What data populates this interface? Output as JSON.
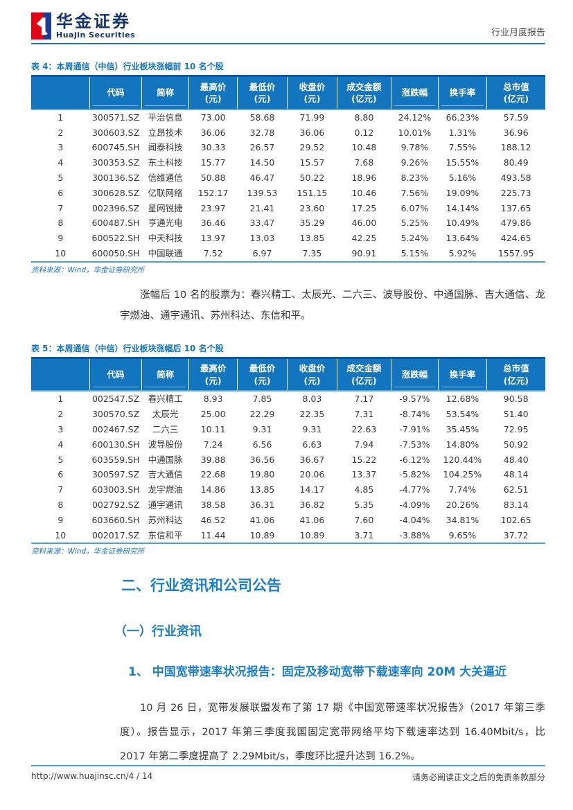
{
  "header": {
    "logo_cn": "华金证券",
    "logo_en": "Huajin Securities",
    "report_type": "行业月度报告"
  },
  "tables": [
    {
      "title": "表 4：本周通信（中信）行业板块涨幅前 10 名个股",
      "headers": [
        "",
        "代码",
        "简称",
        "最高价\n(元)",
        "最低价\n(元)",
        "收盘价\n(元)",
        "成交金额\n(亿元)",
        "涨跌幅",
        "换手率",
        "总市值\n(亿元)"
      ],
      "rows": [
        [
          "1",
          "300571.SZ",
          "平治信息",
          "73.00",
          "58.68",
          "71.99",
          "8.80",
          "24.12%",
          "66.23%",
          "57.59"
        ],
        [
          "2",
          "300603.SZ",
          "立昂技术",
          "36.06",
          "32.78",
          "36.06",
          "0.12",
          "10.01%",
          "1.31%",
          "36.96"
        ],
        [
          "3",
          "600745.SH",
          "闻泰科技",
          "30.33",
          "26.57",
          "29.52",
          "10.48",
          "9.78%",
          "7.55%",
          "188.12"
        ],
        [
          "4",
          "300353.SZ",
          "东土科技",
          "15.77",
          "14.50",
          "15.57",
          "7.68",
          "9.26%",
          "15.55%",
          "80.49"
        ],
        [
          "5",
          "300136.SZ",
          "信维通信",
          "50.88",
          "46.47",
          "50.22",
          "18.96",
          "8.23%",
          "5.16%",
          "493.58"
        ],
        [
          "6",
          "300628.SZ",
          "亿联网络",
          "152.17",
          "139.53",
          "151.15",
          "10.46",
          "7.56%",
          "19.09%",
          "225.73"
        ],
        [
          "7",
          "002396.SZ",
          "星网锐捷",
          "23.97",
          "21.41",
          "23.60",
          "17.25",
          "6.07%",
          "14.14%",
          "137.65"
        ],
        [
          "8",
          "600487.SH",
          "亨通光电",
          "36.46",
          "33.47",
          "35.29",
          "46.00",
          "5.25%",
          "10.49%",
          "479.86"
        ],
        [
          "9",
          "600522.SH",
          "中天科技",
          "13.97",
          "13.03",
          "13.85",
          "42.25",
          "5.24%",
          "13.64%",
          "424.65"
        ],
        [
          "10",
          "600050.SH",
          "中国联通",
          "7.52",
          "6.97",
          "7.35",
          "90.91",
          "5.15%",
          "5.92%",
          "1557.95"
        ]
      ],
      "source": "资料来源：Wind，华金证券研究所"
    },
    {
      "title": "表 5：本周通信（中信）行业板块涨幅后 10 名个股",
      "headers": [
        "",
        "代码",
        "简称",
        "最高价\n(元)",
        "最低价\n(元)",
        "收盘价\n(元)",
        "成交金额\n(亿元)",
        "涨跌幅",
        "换手率",
        "总市值\n(亿元)"
      ],
      "rows": [
        [
          "1",
          "002547.SZ",
          "春兴精工",
          "8.93",
          "7.85",
          "8.03",
          "7.17",
          "-9.57%",
          "12.68%",
          "90.58"
        ],
        [
          "2",
          "300570.SZ",
          "太辰光",
          "25.00",
          "22.29",
          "22.35",
          "7.31",
          "-8.74%",
          "53.54%",
          "51.40"
        ],
        [
          "3",
          "002467.SZ",
          "二六三",
          "10.11",
          "9.31",
          "9.31",
          "22.63",
          "-7.91%",
          "35.45%",
          "72.95"
        ],
        [
          "4",
          "600130.SH",
          "波导股份",
          "7.24",
          "6.56",
          "6.63",
          "7.94",
          "-7.53%",
          "14.80%",
          "50.92"
        ],
        [
          "5",
          "603559.SH",
          "中通国脉",
          "39.88",
          "36.56",
          "36.67",
          "15.22",
          "-6.12%",
          "120.44%",
          "48.40"
        ],
        [
          "6",
          "300597.SZ",
          "吉大通信",
          "22.68",
          "19.80",
          "20.06",
          "13.37",
          "-5.82%",
          "104.25%",
          "48.14"
        ],
        [
          "7",
          "603003.SH",
          "龙宇燃油",
          "14.86",
          "13.85",
          "14.17",
          "4.85",
          "-4.77%",
          "7.74%",
          "62.51"
        ],
        [
          "8",
          "002792.SZ",
          "通宇通讯",
          "38.58",
          "36.31",
          "36.82",
          "5.35",
          "-4.09%",
          "20.26%",
          "83.14"
        ],
        [
          "9",
          "603660.SH",
          "苏州科达",
          "46.52",
          "41.06",
          "41.06",
          "7.60",
          "-4.04%",
          "34.81%",
          "102.65"
        ],
        [
          "10",
          "002017.SZ",
          "东信和平",
          "11.44",
          "10.89",
          "10.89",
          "3.71",
          "-3.88%",
          "9.65%",
          "37.72"
        ]
      ],
      "source": "资料来源：Wind，华金证券研究所"
    }
  ],
  "paragraphs": {
    "between_tables": "涨幅后 10 名的股票为：春兴精工、太辰光、二六三、波导股份、中通国脉、吉大通信、龙宇燃油、通宇通讯、苏州科达、东信和平。",
    "news_body": "10 月 26 日，宽带发展联盟发布了第 17 期《中国宽带速率状况报告》（2017 年第三季度）。报告显示，2017 年第三季度我国固定宽带网络平均下载速率达到 16.40Mbit/s，比 2017 年第二季度提高了 2.29Mbit/s，季度环比提升达到 16.2%。"
  },
  "sections": {
    "h1": "二、行业资讯和公司公告",
    "h2": "（一）行业资讯",
    "h3": "1、 中国宽带速率状况报告：固定及移动宽带下载速率向 20M 大关逼近"
  },
  "footer": {
    "url": "http://www.huajinsc.cn/",
    "page_number": "4 / 14",
    "disclaimer": "请务必阅读正文之后的免责条款部分"
  },
  "colors": {
    "brand_blue": "#1576be",
    "table_header_bg": "#1375bd",
    "table_top_border": "#0b58a6",
    "table_rule_blue": "#5ea9dc",
    "heading_blue": "#1c7fc5",
    "logo_red": "#e60013",
    "logo_navy": "#1e3b96",
    "logo_text_navy": "#16356e",
    "body_text": "#363636"
  }
}
